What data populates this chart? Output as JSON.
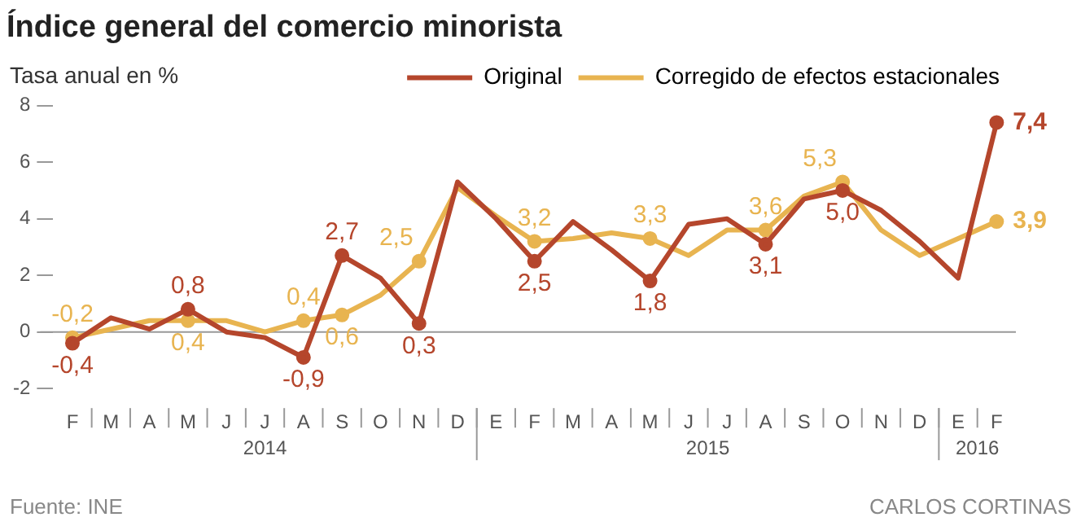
{
  "chart_data": {
    "type": "line",
    "title": "Índice general del comercio minorista",
    "ylabel": "Tasa anual en %",
    "categories": [
      "F",
      "M",
      "A",
      "M",
      "J",
      "J",
      "A",
      "S",
      "O",
      "N",
      "D",
      "E",
      "F",
      "M",
      "A",
      "M",
      "J",
      "J",
      "A",
      "S",
      "O",
      "N",
      "D",
      "E",
      "F"
    ],
    "series": [
      {
        "name": "Original",
        "color": "#b5462c",
        "values": [
          -0.4,
          0.5,
          0.1,
          0.8,
          0.0,
          -0.2,
          -0.9,
          2.7,
          1.9,
          0.3,
          5.3,
          4.0,
          2.5,
          3.9,
          2.9,
          1.8,
          3.8,
          4.0,
          3.1,
          4.7,
          5.0,
          4.3,
          3.2,
          1.9,
          7.4
        ],
        "value_labels": [
          "-0,4",
          null,
          null,
          "0,8",
          null,
          null,
          "-0,9",
          "2,7",
          null,
          "0,3",
          null,
          null,
          "2,5",
          null,
          null,
          "1,8",
          null,
          null,
          "3,1",
          null,
          "5,0",
          null,
          null,
          null,
          "7,4"
        ]
      },
      {
        "name": "Corregido de efectos estacionales",
        "color": "#e8b450",
        "values": [
          -0.2,
          0.1,
          0.4,
          0.4,
          0.4,
          0.0,
          0.4,
          0.6,
          1.3,
          2.5,
          5.1,
          4.1,
          3.2,
          3.3,
          3.5,
          3.3,
          2.7,
          3.6,
          3.6,
          4.8,
          5.3,
          3.6,
          2.7,
          3.3,
          3.9
        ],
        "value_labels": [
          "-0,2",
          null,
          null,
          "0,4",
          null,
          null,
          "0,4",
          "0,6",
          null,
          "2,5",
          null,
          null,
          "3,2",
          null,
          null,
          "3,3",
          null,
          null,
          "3,6",
          null,
          "5,3",
          null,
          null,
          null,
          "3,9"
        ]
      }
    ],
    "ylim": [
      -2,
      8
    ],
    "yticks": [
      -2,
      0,
      2,
      4,
      6,
      8
    ],
    "ref_lines": [
      {
        "axis": "y",
        "value": 0,
        "color": "#999999"
      }
    ],
    "legend": "top right",
    "annotations": [
      "2014",
      "2015",
      "2016",
      "Fuente: INE",
      "CARLOS CORTINAS"
    ]
  }
}
